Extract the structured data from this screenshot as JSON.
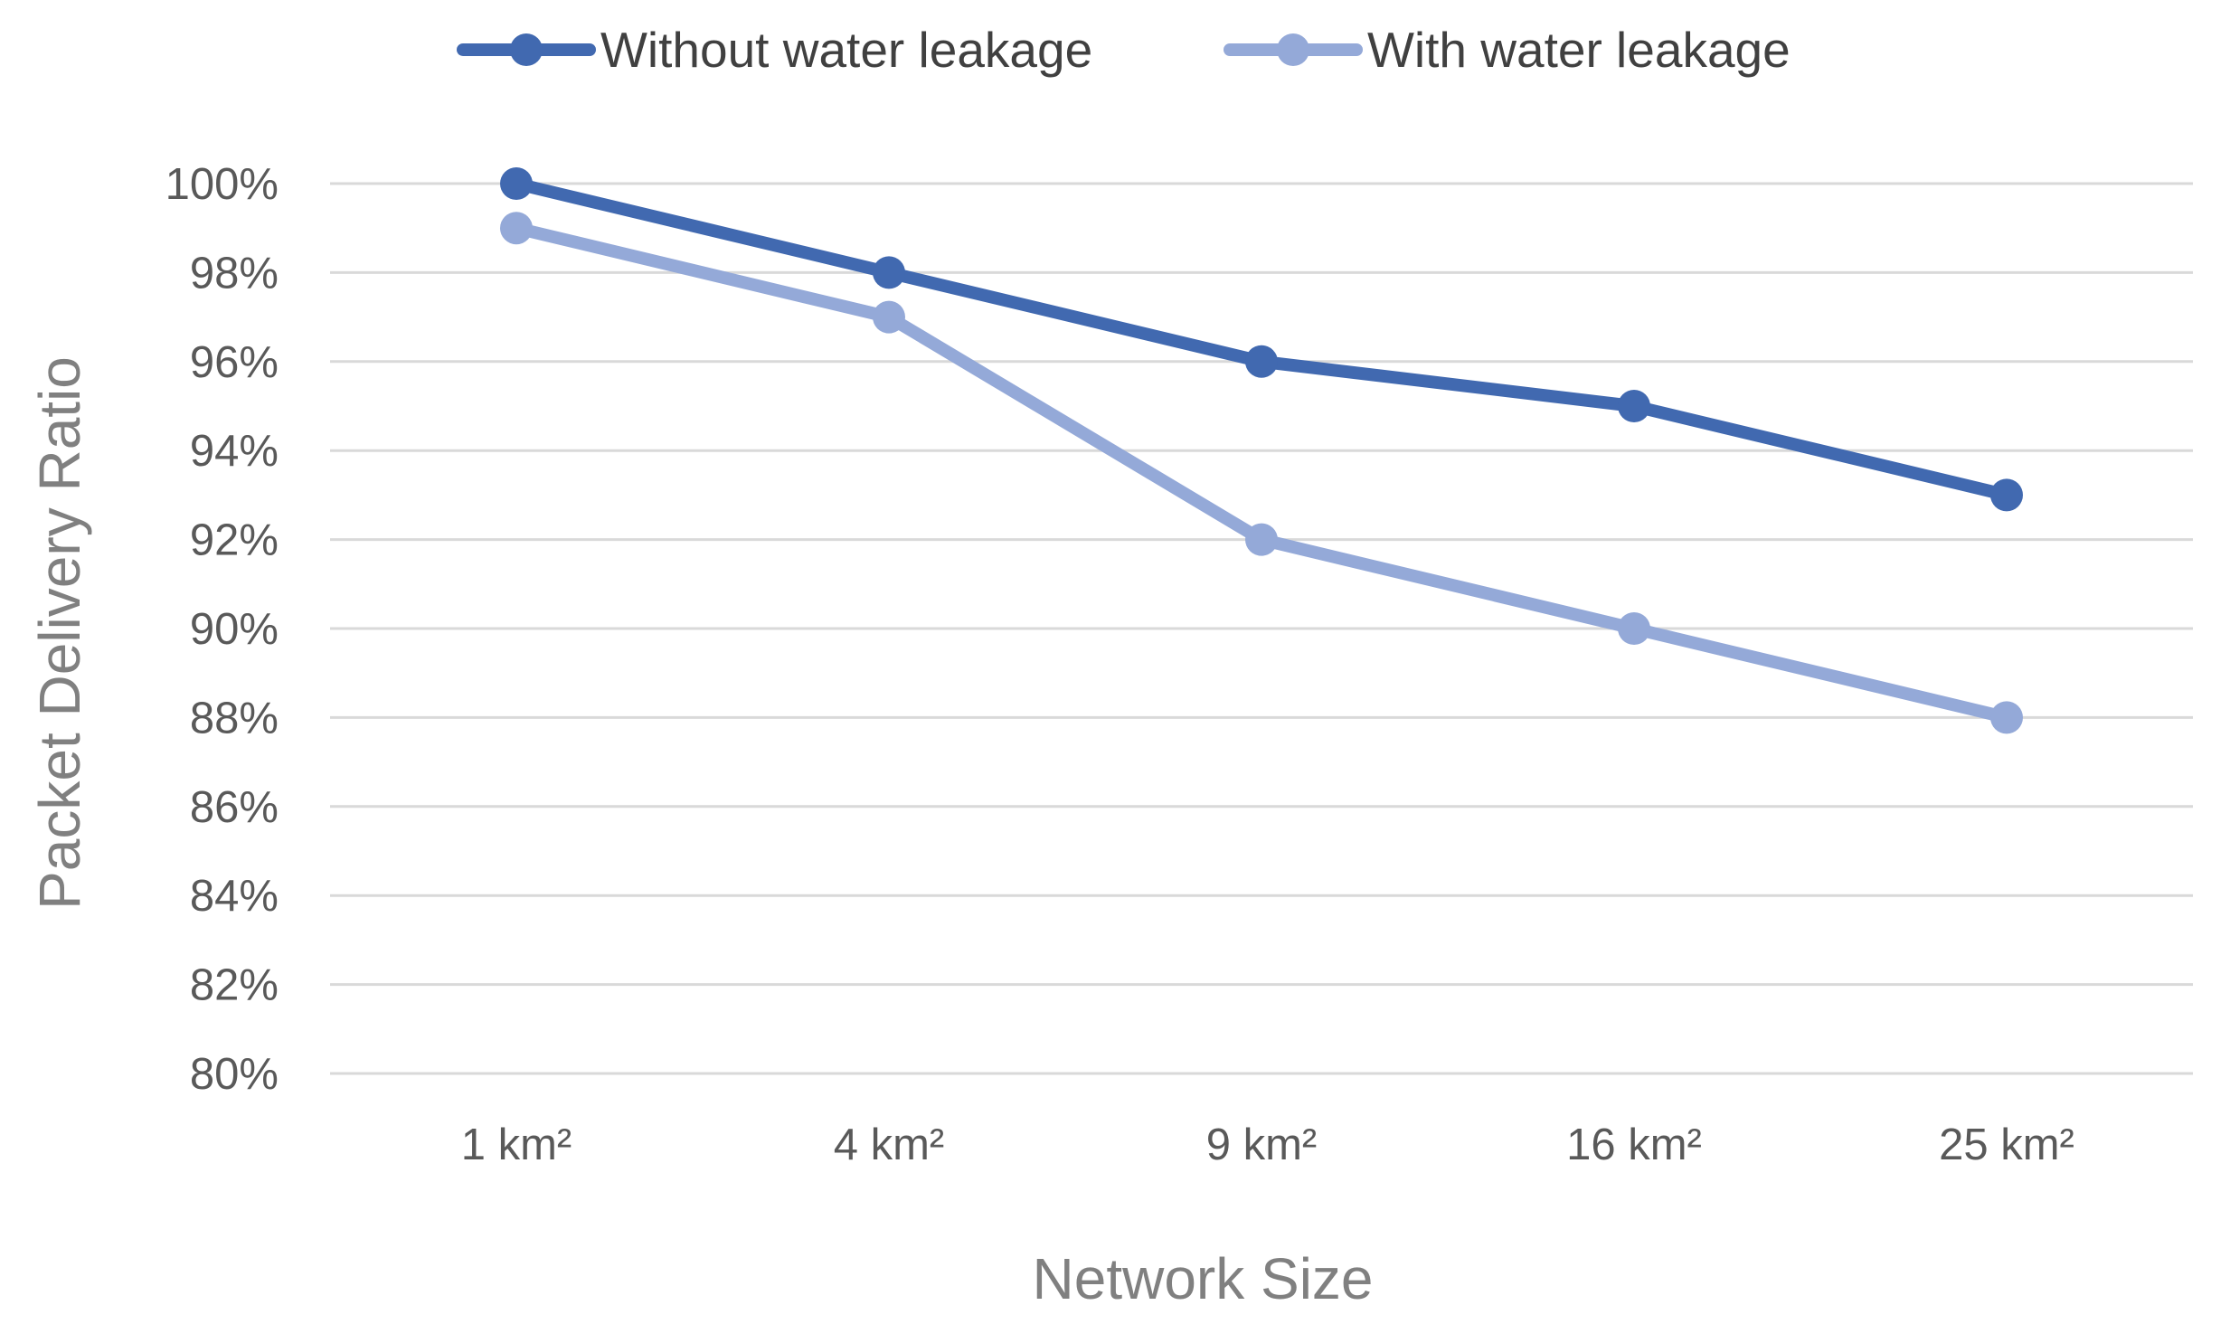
{
  "chart_data": {
    "type": "line",
    "title": "",
    "xlabel": "Network Size",
    "ylabel": "Packet Delivery Ratio",
    "categories": [
      "1 km²",
      "4 km²",
      "9 km²",
      "16 km²",
      "25 km²"
    ],
    "series": [
      {
        "name": "Without water leakage",
        "values": [
          100,
          98,
          96,
          95,
          93
        ],
        "color": "#4169b0"
      },
      {
        "name": "With water leakage",
        "values": [
          99,
          97,
          92,
          90,
          88
        ],
        "color": "#94a9d8"
      }
    ],
    "ylim": [
      80,
      100
    ],
    "y_ticks": [
      80,
      82,
      84,
      86,
      88,
      90,
      92,
      94,
      96,
      98,
      100
    ],
    "y_tick_labels": [
      "80%",
      "82%",
      "84%",
      "86%",
      "88%",
      "90%",
      "92%",
      "94%",
      "96%",
      "98%",
      "100%"
    ],
    "grid": "horizontal",
    "legend_position": "top-center"
  }
}
